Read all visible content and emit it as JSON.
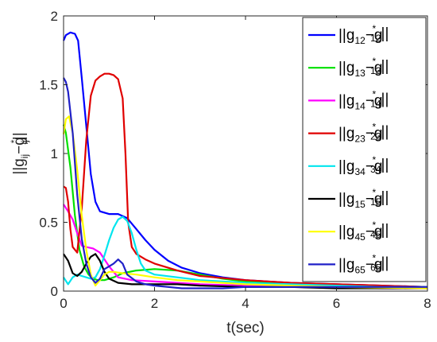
{
  "chart_data": {
    "type": "line",
    "xlabel": "t(sec)",
    "ylabel": {
      "base": "||g",
      "sub1": "ij",
      "mid": "−g",
      "sup": "*",
      "sub2": "ij",
      "end": "||"
    },
    "xlim": [
      0,
      8
    ],
    "ylim": [
      0,
      2
    ],
    "x_ticks": [
      "0",
      "2",
      "4",
      "6",
      "8"
    ],
    "y_ticks": [
      "0",
      "0.5",
      "1",
      "1.5",
      "2"
    ],
    "grid": false,
    "legend_position": "top-right",
    "series": [
      {
        "name": {
          "sub": "12"
        },
        "color": "#0000ff",
        "x": [
          0,
          0.05,
          0.15,
          0.25,
          0.32,
          0.4,
          0.5,
          0.6,
          0.7,
          0.8,
          1.0,
          1.2,
          1.4,
          1.6,
          1.8,
          2.0,
          2.3,
          2.6,
          3.0,
          3.5,
          4.0,
          5.0,
          6.0,
          7.0,
          8.0
        ],
        "y": [
          1.82,
          1.86,
          1.88,
          1.87,
          1.82,
          1.55,
          1.2,
          0.85,
          0.65,
          0.58,
          0.56,
          0.56,
          0.53,
          0.45,
          0.37,
          0.3,
          0.22,
          0.17,
          0.13,
          0.1,
          0.08,
          0.06,
          0.05,
          0.04,
          0.03
        ]
      },
      {
        "name": {
          "sub": "13"
        },
        "color": "#00e000",
        "x": [
          0,
          0.05,
          0.15,
          0.25,
          0.35,
          0.45,
          0.55,
          0.65,
          0.75,
          0.9,
          1.1,
          1.3,
          1.6,
          2.0,
          2.5,
          3.0,
          3.5,
          4.0,
          5.0,
          6.0,
          7.0,
          8.0
        ],
        "y": [
          1.21,
          1.15,
          0.9,
          0.55,
          0.3,
          0.18,
          0.12,
          0.09,
          0.08,
          0.08,
          0.1,
          0.13,
          0.15,
          0.16,
          0.15,
          0.12,
          0.09,
          0.07,
          0.05,
          0.04,
          0.03,
          0.02
        ]
      },
      {
        "name": {
          "sub": "14"
        },
        "color": "#ff00ff",
        "x": [
          0,
          0.1,
          0.2,
          0.3,
          0.4,
          0.5,
          0.65,
          0.8,
          1.0,
          1.2,
          1.5,
          2.0,
          2.5,
          3.0,
          4.0,
          5.0,
          6.0,
          7.0,
          8.0
        ],
        "y": [
          0.63,
          0.58,
          0.52,
          0.42,
          0.33,
          0.32,
          0.31,
          0.28,
          0.18,
          0.1,
          0.08,
          0.07,
          0.06,
          0.05,
          0.04,
          0.03,
          0.025,
          0.02,
          0.02
        ]
      },
      {
        "name": {
          "sub": "23"
        },
        "color": "#e00000",
        "x": [
          0,
          0.05,
          0.1,
          0.15,
          0.2,
          0.3,
          0.4,
          0.5,
          0.6,
          0.7,
          0.8,
          0.9,
          1.0,
          1.1,
          1.2,
          1.3,
          1.36,
          1.42,
          1.5,
          1.6,
          1.8,
          2.0,
          2.5,
          3.0,
          4.0,
          5.0,
          6.0,
          7.0,
          8.0
        ],
        "y": [
          0.76,
          0.75,
          0.65,
          0.45,
          0.32,
          0.28,
          0.6,
          1.1,
          1.42,
          1.53,
          1.56,
          1.58,
          1.58,
          1.57,
          1.54,
          1.4,
          1.0,
          0.5,
          0.32,
          0.27,
          0.23,
          0.2,
          0.15,
          0.11,
          0.08,
          0.06,
          0.05,
          0.04,
          0.03
        ]
      },
      {
        "name": {
          "sub": "34"
        },
        "color": "#00e5ee",
        "x": [
          0,
          0.1,
          0.2,
          0.3,
          0.4,
          0.5,
          0.6,
          0.7,
          0.8,
          0.9,
          1.0,
          1.1,
          1.2,
          1.3,
          1.4,
          1.5,
          1.6,
          1.7,
          1.8,
          2.0,
          2.5,
          3.0,
          4.0,
          5.0,
          6.0,
          7.0,
          8.0
        ],
        "y": [
          0.1,
          0.05,
          0.1,
          0.12,
          0.11,
          0.1,
          0.09,
          0.1,
          0.16,
          0.26,
          0.37,
          0.46,
          0.52,
          0.54,
          0.51,
          0.42,
          0.3,
          0.2,
          0.15,
          0.12,
          0.1,
          0.08,
          0.06,
          0.05,
          0.04,
          0.03,
          0.03
        ]
      },
      {
        "name": {
          "sub": "15"
        },
        "color": "#000000",
        "x": [
          0,
          0.1,
          0.2,
          0.3,
          0.4,
          0.5,
          0.6,
          0.7,
          0.8,
          0.9,
          1.0,
          1.2,
          1.5,
          2.0,
          2.5,
          3.0,
          4.0,
          5.0,
          6.0,
          7.0,
          8.0
        ],
        "y": [
          0.27,
          0.22,
          0.13,
          0.11,
          0.14,
          0.2,
          0.25,
          0.27,
          0.22,
          0.14,
          0.09,
          0.06,
          0.05,
          0.05,
          0.05,
          0.04,
          0.03,
          0.03,
          0.02,
          0.02,
          0.02
        ]
      },
      {
        "name": {
          "sub": "45"
        },
        "color": "#ffff00",
        "x": [
          0,
          0.05,
          0.12,
          0.2,
          0.3,
          0.4,
          0.5,
          0.6,
          0.7,
          0.8,
          0.9,
          1.0,
          1.1,
          1.3,
          1.6,
          2.0,
          2.5,
          3.0,
          4.0,
          5.0,
          6.0,
          7.0,
          8.0
        ],
        "y": [
          1.14,
          1.25,
          1.27,
          1.15,
          0.88,
          0.55,
          0.3,
          0.12,
          0.04,
          0.08,
          0.12,
          0.14,
          0.14,
          0.13,
          0.12,
          0.1,
          0.08,
          0.07,
          0.05,
          0.04,
          0.03,
          0.025,
          0.02
        ]
      },
      {
        "name": {
          "sub": "65"
        },
        "color": "#2020c8",
        "x": [
          0,
          0.05,
          0.1,
          0.2,
          0.3,
          0.4,
          0.5,
          0.6,
          0.7,
          0.8,
          0.9,
          1.0,
          1.1,
          1.2,
          1.3,
          1.4,
          1.6,
          1.8,
          2.0,
          2.3,
          2.6,
          3.0,
          3.5,
          4.0,
          5.0,
          6.0,
          7.0,
          8.0
        ],
        "y": [
          1.55,
          1.52,
          1.45,
          1.15,
          0.7,
          0.38,
          0.2,
          0.1,
          0.06,
          0.09,
          0.16,
          0.18,
          0.2,
          0.23,
          0.2,
          0.12,
          0.07,
          0.05,
          0.04,
          0.03,
          0.02,
          0.02,
          0.02,
          0.03,
          0.03,
          0.03,
          0.03,
          0.03
        ]
      }
    ]
  }
}
